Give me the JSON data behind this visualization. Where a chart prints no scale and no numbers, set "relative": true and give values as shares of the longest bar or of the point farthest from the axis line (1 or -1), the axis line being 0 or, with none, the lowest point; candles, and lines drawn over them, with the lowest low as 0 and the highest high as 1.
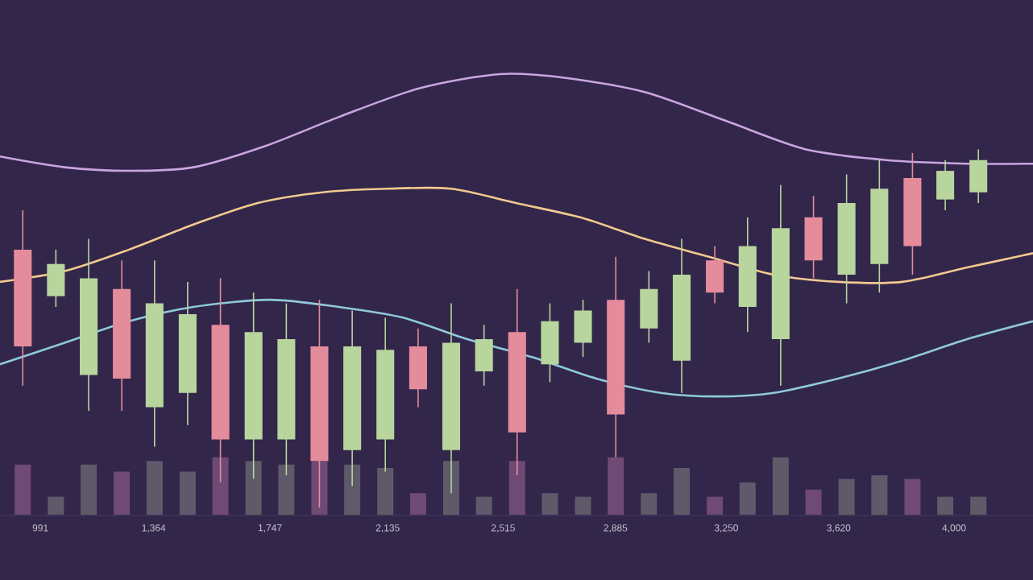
{
  "chart_data": {
    "type": "candlestick",
    "relative": true,
    "x": [
      933,
      1042,
      1150,
      1259,
      1367,
      1476,
      1584,
      1693,
      1801,
      1910,
      2018,
      2127,
      2235,
      2344,
      2452,
      2561,
      2669,
      2778,
      2886,
      2995,
      3103,
      3212,
      3320,
      3429,
      3537,
      3646,
      3754,
      3863,
      3971,
      4080
    ],
    "ohlc": [
      [
        0.72,
        0.83,
        0.34,
        0.45
      ],
      [
        0.59,
        0.72,
        0.56,
        0.68
      ],
      [
        0.37,
        0.75,
        0.27,
        0.64
      ],
      [
        0.61,
        0.69,
        0.27,
        0.36
      ],
      [
        0.28,
        0.69,
        0.17,
        0.57
      ],
      [
        0.32,
        0.63,
        0.23,
        0.54
      ],
      [
        0.51,
        0.64,
        0.07,
        0.19
      ],
      [
        0.19,
        0.6,
        0.08,
        0.49
      ],
      [
        0.19,
        0.57,
        0.09,
        0.47
      ],
      [
        0.45,
        0.58,
        0,
        0.13
      ],
      [
        0.16,
        0.55,
        0.06,
        0.45
      ],
      [
        0.19,
        0.53,
        0.1,
        0.44
      ],
      [
        0.45,
        0.5,
        0.28,
        0.33
      ],
      [
        0.16,
        0.57,
        0.04,
        0.46
      ],
      [
        0.38,
        0.51,
        0.34,
        0.47
      ],
      [
        0.49,
        0.61,
        0.09,
        0.21
      ],
      [
        0.4,
        0.57,
        0.35,
        0.52
      ],
      [
        0.46,
        0.58,
        0.42,
        0.55
      ],
      [
        0.58,
        0.7,
        0.14,
        0.26
      ],
      [
        0.5,
        0.66,
        0.46,
        0.61
      ],
      [
        0.41,
        0.75,
        0.32,
        0.65
      ],
      [
        0.69,
        0.73,
        0.57,
        0.6
      ],
      [
        0.56,
        0.81,
        0.49,
        0.73
      ],
      [
        0.47,
        0.9,
        0.34,
        0.78
      ],
      [
        0.81,
        0.87,
        0.64,
        0.69
      ],
      [
        0.65,
        0.93,
        0.57,
        0.85
      ],
      [
        0.68,
        0.97,
        0.6,
        0.89
      ],
      [
        0.92,
        0.99,
        0.65,
        0.73
      ],
      [
        0.86,
        0.97,
        0.83,
        0.94
      ],
      [
        0.88,
        1,
        0.85,
        0.97
      ]
    ],
    "colors": [
      "#e58c9c",
      "#b7d59d",
      "#b7d59d",
      "#e58c9c",
      "#b7d59d",
      "#b7d59d",
      "#e58c9c",
      "#b7d59d",
      "#b7d59d",
      "#e58c9c",
      "#b7d59d",
      "#b7d59d",
      "#e58c9c",
      "#b7d59d",
      "#b7d59d",
      "#e58c9c",
      "#b7d59d",
      "#b7d59d",
      "#e58c9c",
      "#b7d59d",
      "#b7d59d",
      "#e58c9c",
      "#b7d59d",
      "#b7d59d",
      "#e58c9c",
      "#b7d59d",
      "#b7d59d",
      "#e58c9c",
      "#b7d59d",
      "#b7d59d"
    ],
    "xlim": [
      858,
      4260
    ],
    "xticks": [
      {
        "value": 991,
        "label": "991"
      },
      {
        "value": 1364,
        "label": "1,364"
      },
      {
        "value": 1747,
        "label": "1,747"
      },
      {
        "value": 2135,
        "label": "2,135"
      },
      {
        "value": 2515,
        "label": "2,515"
      },
      {
        "value": 2885,
        "label": "2,885"
      },
      {
        "value": 3250,
        "label": "3,250"
      },
      {
        "value": 3620,
        "label": "3,620"
      },
      {
        "value": 4000,
        "label": "4,000"
      }
    ],
    "series": [
      {
        "type": "bar",
        "base": [
          -0.02,
          -0.02,
          -0.02,
          -0.02,
          -0.02,
          -0.02,
          -0.02,
          -0.02,
          -0.02,
          -0.02,
          -0.02,
          -0.02,
          -0.02,
          -0.02,
          -0.02,
          -0.02,
          -0.02,
          -0.02,
          -0.02,
          -0.02,
          -0.02,
          -0.02,
          -0.02,
          -0.02,
          -0.02,
          -0.02,
          -0.02,
          -0.02,
          -0.02,
          -0.02
        ],
        "values": [
          0.14,
          0.05,
          0.14,
          0.12,
          0.15,
          0.12,
          0.16,
          0.15,
          0.14,
          0.15,
          0.14,
          0.13,
          0.06,
          0.15,
          0.05,
          0.15,
          0.06,
          0.05,
          0.16,
          0.06,
          0.13,
          0.05,
          0.09,
          0.16,
          0.07,
          0.1,
          0.11,
          0.1,
          0.05,
          0.05
        ],
        "colors": [
          "#6e4a74",
          "#5f5a6a",
          "#5f5a6a",
          "#6e4a74",
          "#5f5a6a",
          "#5f5a6a",
          "#6e4a74",
          "#5f5a6a",
          "#5f5a6a",
          "#6e4a74",
          "#5f5a6a",
          "#5f5a6a",
          "#6e4a74",
          "#5f5a6a",
          "#5f5a6a",
          "#6e4a74",
          "#5f5a6a",
          "#5f5a6a",
          "#6e4a74",
          "#5f5a6a",
          "#5f5a6a",
          "#6e4a74",
          "#5f5a6a",
          "#5f5a6a",
          "#6e4a74",
          "#5f5a6a",
          "#5f5a6a",
          "#6e4a74",
          "#5f5a6a",
          "#5f5a6a"
        ]
      },
      {
        "type": "line",
        "color": "#c9a6e0",
        "x": [
          858,
          1071,
          1283,
          1495,
          1734,
          1973,
          2238,
          2503,
          2716,
          2981,
          3247,
          3512,
          3777,
          4043,
          4260
        ],
        "values": [
          0.98,
          0.95,
          0.94,
          0.95,
          1.01,
          1.09,
          1.17,
          1.21,
          1.2,
          1.16,
          1.08,
          1.0,
          0.97,
          0.96,
          0.96
        ]
      },
      {
        "type": "line",
        "color": "#f2c98f",
        "x": [
          858,
          1071,
          1283,
          1495,
          1707,
          1920,
          2132,
          2344,
          2557,
          2769,
          2981,
          3193,
          3406,
          3618,
          3830,
          4043,
          4260
        ],
        "values": [
          0.63,
          0.66,
          0.72,
          0.79,
          0.85,
          0.88,
          0.89,
          0.89,
          0.85,
          0.81,
          0.75,
          0.7,
          0.65,
          0.63,
          0.63,
          0.67,
          0.71
        ]
      },
      {
        "type": "line",
        "color": "#8fc9dc",
        "x": [
          858,
          1071,
          1283,
          1495,
          1745,
          1973,
          2185,
          2397,
          2610,
          2822,
          3034,
          3220,
          3406,
          3618,
          3830,
          4043,
          4260
        ],
        "values": [
          0.4,
          0.46,
          0.52,
          0.56,
          0.58,
          0.56,
          0.53,
          0.47,
          0.42,
          0.36,
          0.32,
          0.31,
          0.32,
          0.36,
          0.41,
          0.47,
          0.52
        ]
      }
    ]
  }
}
